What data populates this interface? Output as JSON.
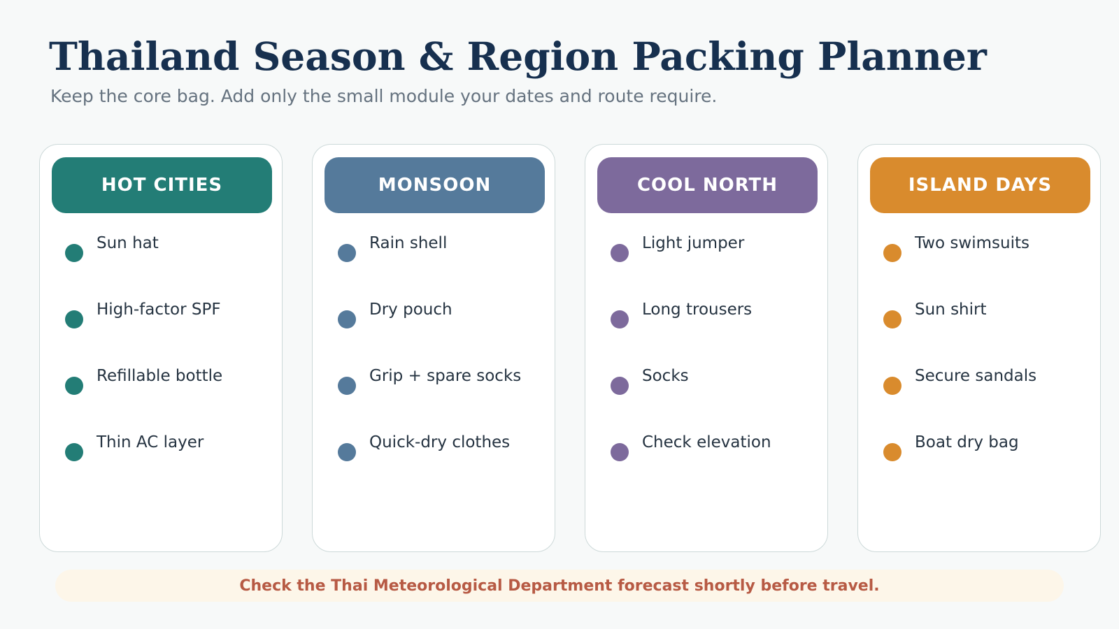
{
  "title": "Thailand Season & Region Packing Planner",
  "subtitle": "Keep the core bag. Add only the small module your dates and route require.",
  "cards": [
    {
      "header": "HOT CITIES",
      "color": "#237d76",
      "items": [
        "Sun hat",
        "High-factor SPF",
        "Refillable bottle",
        "Thin AC layer"
      ]
    },
    {
      "header": "MONSOON",
      "color": "#557a9b",
      "items": [
        "Rain shell",
        "Dry pouch",
        "Grip + spare socks",
        "Quick-dry clothes"
      ]
    },
    {
      "header": "COOL NORTH",
      "color": "#7d6a9c",
      "items": [
        "Light jumper",
        "Long trousers",
        "Socks",
        "Check elevation"
      ]
    },
    {
      "header": "ISLAND DAYS",
      "color": "#d98b2d",
      "items": [
        "Two swimsuits",
        "Sun shirt",
        "Secure sandals",
        "Boat dry bag"
      ]
    }
  ],
  "footer": "Check the Thai Meteorological Department forecast shortly before travel."
}
